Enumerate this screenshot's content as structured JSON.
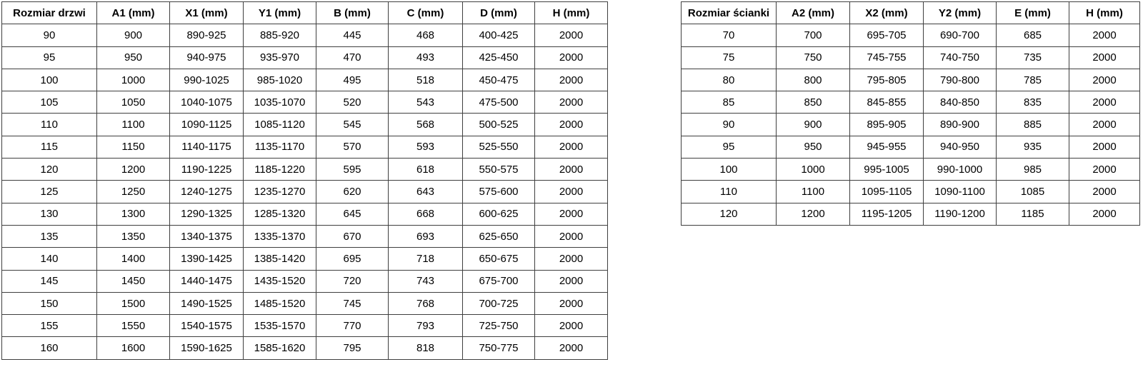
{
  "colors": {
    "background": "#ffffff",
    "table_border": "#3f3f3f",
    "text": "#000000"
  },
  "tables": [
    {
      "id": "door-size-table",
      "headers": [
        "Rozmiar drzwi",
        "A1 (mm)",
        "X1 (mm)",
        "Y1 (mm)",
        "B (mm)",
        "C (mm)",
        "D (mm)",
        "H (mm)"
      ],
      "rows": [
        [
          "90",
          "900",
          "890-925",
          "885-920",
          "445",
          "468",
          "400-425",
          "2000"
        ],
        [
          "95",
          "950",
          "940-975",
          "935-970",
          "470",
          "493",
          "425-450",
          "2000"
        ],
        [
          "100",
          "1000",
          "990-1025",
          "985-1020",
          "495",
          "518",
          "450-475",
          "2000"
        ],
        [
          "105",
          "1050",
          "1040-1075",
          "1035-1070",
          "520",
          "543",
          "475-500",
          "2000"
        ],
        [
          "110",
          "1100",
          "1090-1125",
          "1085-1120",
          "545",
          "568",
          "500-525",
          "2000"
        ],
        [
          "115",
          "1150",
          "1140-1175",
          "1135-1170",
          "570",
          "593",
          "525-550",
          "2000"
        ],
        [
          "120",
          "1200",
          "1190-1225",
          "1185-1220",
          "595",
          "618",
          "550-575",
          "2000"
        ],
        [
          "125",
          "1250",
          "1240-1275",
          "1235-1270",
          "620",
          "643",
          "575-600",
          "2000"
        ],
        [
          "130",
          "1300",
          "1290-1325",
          "1285-1320",
          "645",
          "668",
          "600-625",
          "2000"
        ],
        [
          "135",
          "1350",
          "1340-1375",
          "1335-1370",
          "670",
          "693",
          "625-650",
          "2000"
        ],
        [
          "140",
          "1400",
          "1390-1425",
          "1385-1420",
          "695",
          "718",
          "650-675",
          "2000"
        ],
        [
          "145",
          "1450",
          "1440-1475",
          "1435-1520",
          "720",
          "743",
          "675-700",
          "2000"
        ],
        [
          "150",
          "1500",
          "1490-1525",
          "1485-1520",
          "745",
          "768",
          "700-725",
          "2000"
        ],
        [
          "155",
          "1550",
          "1540-1575",
          "1535-1570",
          "770",
          "793",
          "725-750",
          "2000"
        ],
        [
          "160",
          "1600",
          "1590-1625",
          "1585-1620",
          "795",
          "818",
          "750-775",
          "2000"
        ]
      ]
    },
    {
      "id": "wall-size-table",
      "headers": [
        "Rozmiar ścianki",
        "A2 (mm)",
        "X2 (mm)",
        "Y2 (mm)",
        "E (mm)",
        "H (mm)"
      ],
      "rows": [
        [
          "70",
          "700",
          "695-705",
          "690-700",
          "685",
          "2000"
        ],
        [
          "75",
          "750",
          "745-755",
          "740-750",
          "735",
          "2000"
        ],
        [
          "80",
          "800",
          "795-805",
          "790-800",
          "785",
          "2000"
        ],
        [
          "85",
          "850",
          "845-855",
          "840-850",
          "835",
          "2000"
        ],
        [
          "90",
          "900",
          "895-905",
          "890-900",
          "885",
          "2000"
        ],
        [
          "95",
          "950",
          "945-955",
          "940-950",
          "935",
          "2000"
        ],
        [
          "100",
          "1000",
          "995-1005",
          "990-1000",
          "985",
          "2000"
        ],
        [
          "110",
          "1100",
          "1095-1105",
          "1090-1100",
          "1085",
          "2000"
        ],
        [
          "120",
          "1200",
          "1195-1205",
          "1190-1200",
          "1185",
          "2000"
        ]
      ]
    }
  ]
}
